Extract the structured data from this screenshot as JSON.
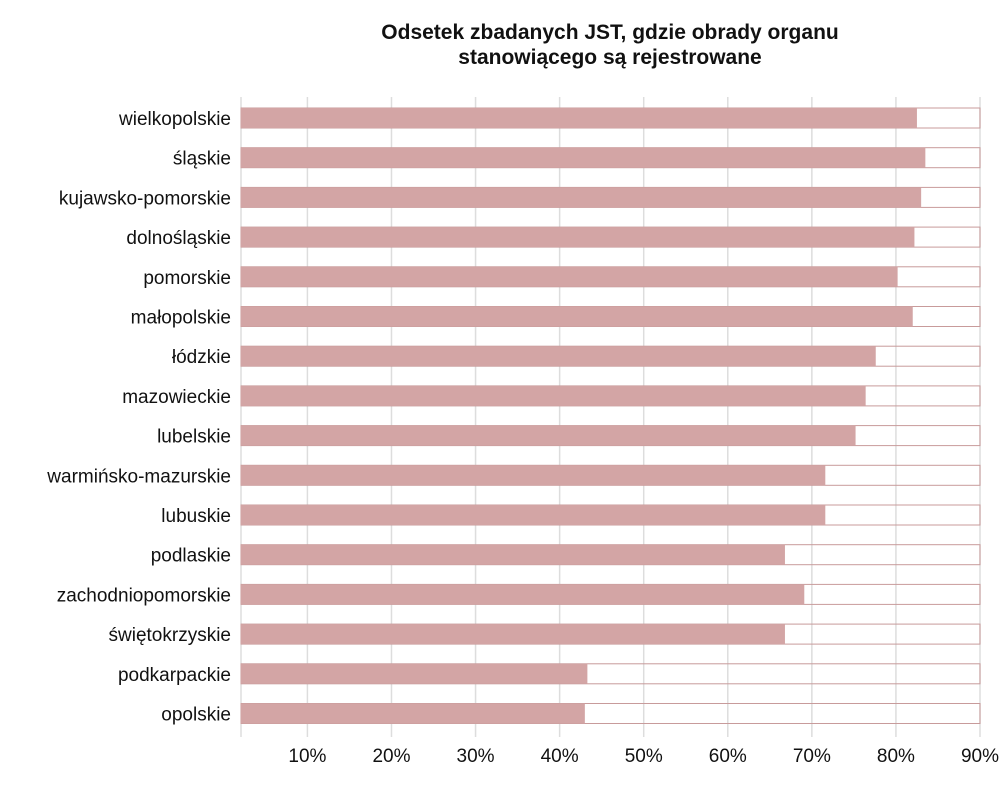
{
  "chart_data": {
    "type": "bar",
    "orientation": "horizontal",
    "title": "Odsetek zbadanych JST, gdzie obrady organu stanowiącego są rejestrowane",
    "title_lines": [
      "Odsetek zbadanych JST, gdzie obrady organu",
      "stanowiącego są rejestrowane"
    ],
    "categories": [
      "wielkopolskie",
      "śląskie",
      "kujawsko-pomorskie",
      "dolnośląskie",
      "pomorskie",
      "małopolskie",
      "łódzkie",
      "mazowieckie",
      "lubelskie",
      "warmińsko-mazurskie",
      "lubuskie",
      "podlaskie",
      "zachodniopomorskie",
      "świętokrzyskie",
      "podkarpackie",
      "opolskie"
    ],
    "values": [
      82.5,
      83.5,
      83.0,
      82.2,
      80.2,
      82.0,
      77.6,
      76.4,
      75.2,
      71.6,
      71.6,
      66.8,
      69.1,
      66.8,
      43.3,
      43.0
    ],
    "xlim": [
      2.1,
      90
    ],
    "xticks": [
      10,
      20,
      30,
      40,
      50,
      60,
      70,
      80,
      90
    ],
    "xtick_labels": [
      "10%",
      "20%",
      "30%",
      "40%",
      "50%",
      "60%",
      "70%",
      "80%",
      "90%"
    ],
    "xlabel": "",
    "ylabel": "",
    "grid": true,
    "legend": "none",
    "colors": {
      "bar": "#d3a5a5",
      "bar_outline": "#c89b9b",
      "grid": "#dddddd",
      "axis": "#cccccc"
    }
  }
}
